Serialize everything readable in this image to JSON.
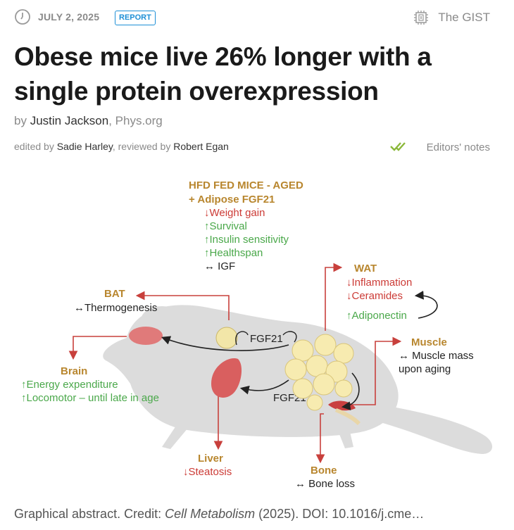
{
  "meta": {
    "date": "JULY 2, 2025",
    "badge": "REPORT",
    "gist_label": "The GIST",
    "accent_color": "#1d8fd6"
  },
  "article": {
    "title": "Obese mice live 26% longer with a single protein overexpression",
    "by_prefix": "by",
    "author": "Justin Jackson",
    "source": "Phys.org",
    "edited_prefix": "edited by",
    "editor": "Sadie Harley",
    "reviewed_prefix": ", reviewed by",
    "reviewer": "Robert Egan",
    "editors_notes": "Editors' notes"
  },
  "figure": {
    "header_line1": "HFD FED MICE - AGED",
    "header_line2": "+ Adipose FGF21",
    "effects": [
      {
        "text": "↓Weight gain",
        "tone": "down"
      },
      {
        "text": "↑Survival",
        "tone": "up"
      },
      {
        "text": "↑Insulin sensitivity",
        "tone": "up"
      },
      {
        "text": "↑Healthspan",
        "tone": "up"
      },
      {
        "text": "↔ IGF",
        "tone": "neutral"
      }
    ],
    "wat_title": "WAT",
    "wat_effects": [
      "↓Inflammation",
      "↓Ceramides"
    ],
    "wat_up": "↑Adiponectin",
    "bat_title": "BAT",
    "bat_effect": "↔Thermogenesis",
    "brain_title": "Brain",
    "brain_effects": [
      "↑Energy expenditure",
      "↑Locomotor – until late in age"
    ],
    "muscle_title": "Muscle",
    "muscle_effects": [
      "↔ Muscle mass",
      "upon aging"
    ],
    "liver_title": "Liver",
    "liver_effect": "↓Steatosis",
    "bone_title": "Bone",
    "bone_effect": "↔ Bone loss",
    "fgf21_label_top": "FGF21",
    "fgf21_label_bottom": "FGF21",
    "colors": {
      "title": "#b8862e",
      "down": "#cc3b36",
      "up": "#4aa84a",
      "arrow": "#c8403c"
    }
  },
  "caption": {
    "prefix": "Graphical abstract. Credit:",
    "journal": "Cell Metabolism",
    "suffix": "(2025). DOI: 10.1016/j.cme…"
  }
}
